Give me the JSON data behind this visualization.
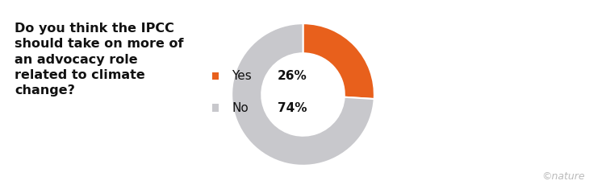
{
  "title": "Do you think the IPCC\nshould take on more of\nan advocacy role\nrelated to climate\nchange?",
  "slices": [
    26,
    74
  ],
  "labels": [
    "Yes",
    "No"
  ],
  "percentages": [
    "26%",
    "74%"
  ],
  "colors": [
    "#E8601C",
    "#C8C8CC"
  ],
  "donut_width": 0.42,
  "background_color": "#ffffff",
  "title_fontsize": 11.5,
  "legend_fontsize": 11,
  "nature_text": "©nature",
  "nature_color": "#bbbbbb",
  "startangle": 90,
  "counterclock": false
}
